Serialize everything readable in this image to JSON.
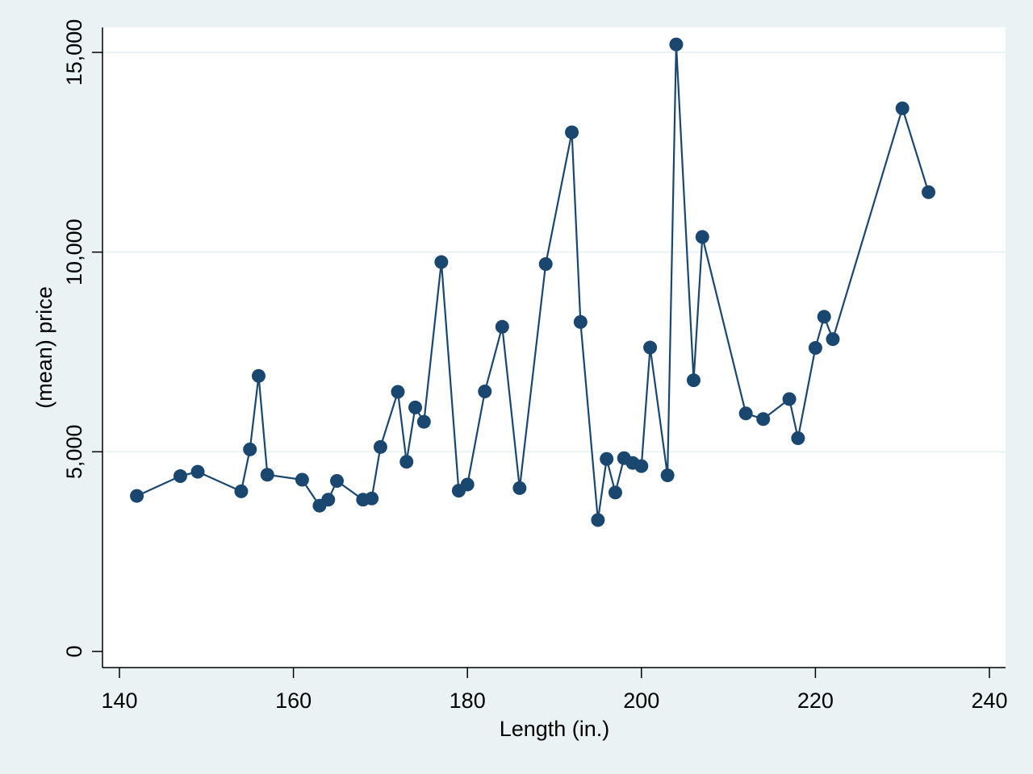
{
  "chart_data": {
    "type": "line",
    "xlabel": "Length (in.)",
    "ylabel": "(mean) price",
    "xlim": [
      140,
      240
    ],
    "ylim": [
      0,
      15000
    ],
    "x_ticks": [
      140,
      160,
      180,
      200,
      220,
      240
    ],
    "x_tick_labels": [
      "140",
      "160",
      "180",
      "200",
      "220",
      "240"
    ],
    "y_ticks": [
      0,
      5000,
      10000,
      15000
    ],
    "y_tick_labels": [
      "0",
      "5,000",
      "10,000",
      "15,000"
    ],
    "grid": "horizontal",
    "markers": true,
    "series_color": "#1a476f",
    "gridline_color": "#eaf2f3",
    "background_color": "#eaf2f3",
    "plot_background_color": "#ffffff",
    "series": [
      {
        "x": [
          142,
          147,
          149,
          154,
          155,
          156,
          157,
          161,
          163,
          164,
          165,
          168,
          169,
          170,
          172,
          173,
          174,
          175,
          177,
          179,
          180,
          182,
          184,
          186,
          189,
          192,
          193,
          195,
          196,
          197,
          198,
          199,
          200,
          201,
          203,
          204,
          206,
          207,
          212,
          214,
          217,
          218,
          220,
          221,
          222,
          230,
          233
        ],
        "y": [
          3895,
          4390,
          4500,
          4010,
          5060,
          6900,
          4425,
          4300,
          3650,
          3800,
          4270,
          3800,
          3830,
          5120,
          6500,
          4750,
          6110,
          5750,
          9750,
          4025,
          4180,
          6510,
          8130,
          4090,
          9700,
          13000,
          8250,
          3290,
          4820,
          3980,
          4840,
          4720,
          4640,
          7610,
          4410,
          15200,
          6790,
          10380,
          5960,
          5820,
          6320,
          5340,
          7600,
          8380,
          7820,
          13600,
          11500
        ]
      }
    ]
  }
}
